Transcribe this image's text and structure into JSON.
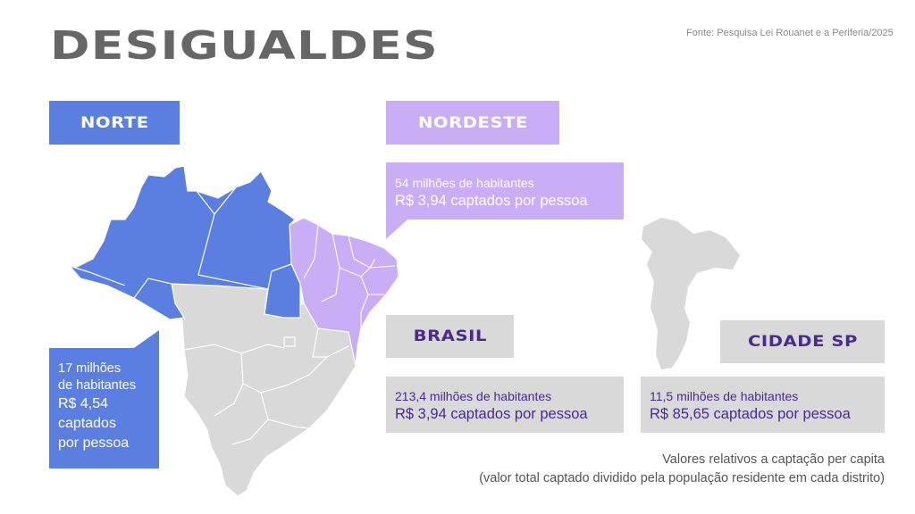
{
  "title": "DESIGUALDES",
  "source": "Fonte: Pesquisa Lei Rouanet e a Periferia/2025",
  "regions": {
    "norte": {
      "label": "NORTE",
      "lines": [
        "17 milhões",
        "de habitantes",
        "R$ 4,54",
        "captados",
        "por pessoa"
      ]
    },
    "nordeste": {
      "label": "NORDESTE",
      "population": "54 milhões  de habitantes",
      "per_capita": "R$ 3,94  captados por pessoa"
    },
    "brasil": {
      "label": "BRASIL",
      "population": "213,4 milhões  de habitantes",
      "per_capita": "R$ 3,94  captados por pessoa"
    },
    "cidade_sp": {
      "label": "CIDADE SP",
      "population": "11,5 milhões  de habitantes",
      "per_capita": "R$ 85,65 captados por pessoa"
    }
  },
  "note": {
    "line1": "Valores relativos a captação per capita",
    "line2": "(valor total captado dividido pela população residente em cada distrito)"
  },
  "colors": {
    "norte": "#5b7fe1",
    "nordeste": "#c9aef5",
    "neutral": "#d9d9d9",
    "accent_text": "#4a2a91"
  }
}
